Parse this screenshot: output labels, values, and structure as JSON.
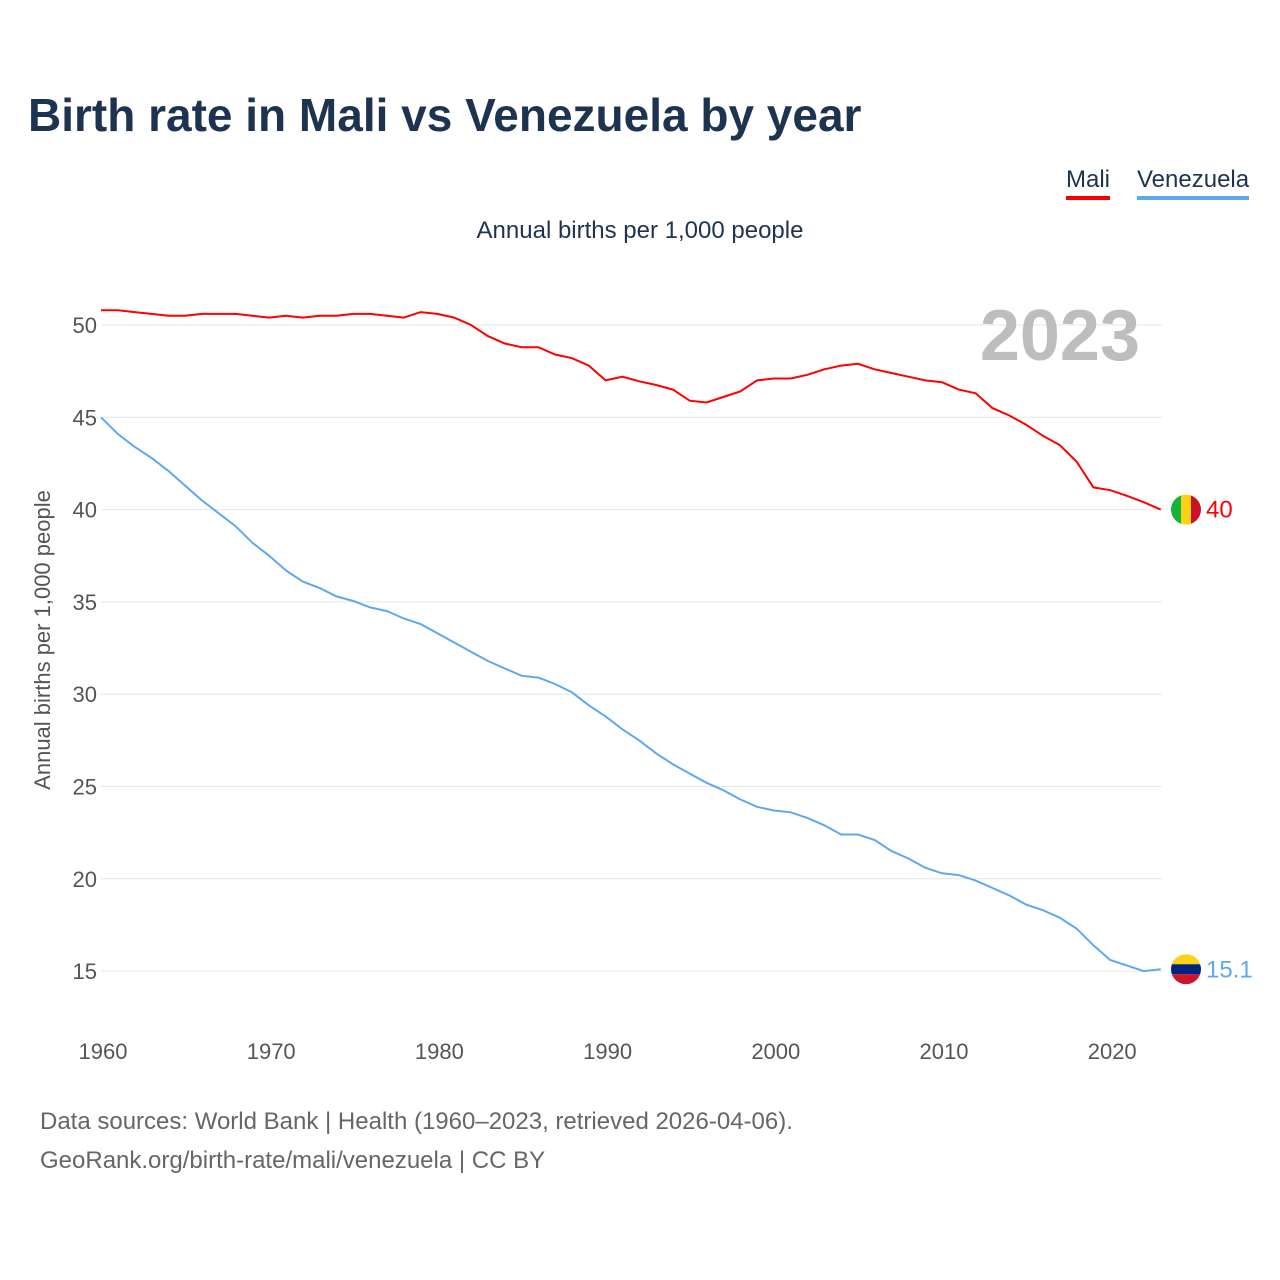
{
  "title": "Birth rate in Mali vs Venezuela by year",
  "legend": [
    {
      "label": "Mali",
      "color": "#ff0000"
    },
    {
      "label": "Venezuela",
      "color": "#5fa8ee"
    }
  ],
  "source_line1": "Data sources: World Bank | Health (1960–2023, retrieved 2026-04-06).",
  "source_line2": "GeoRank.org/birth-rate/mali/venezuela | CC BY",
  "chart_data": {
    "type": "line",
    "title": "Birth rate in Mali vs Venezuela by year",
    "subtitle": "Annual births per 1,000 people",
    "ylabel": "Annual births per 1,000 people",
    "xlabel": "",
    "year_label": "2023",
    "xlim": [
      1960,
      2023
    ],
    "ylim": [
      12.5,
      52.5
    ],
    "xticks": [
      1960,
      1970,
      1980,
      1990,
      2000,
      2010,
      2020
    ],
    "yticks": [
      15,
      20,
      25,
      30,
      35,
      40,
      45,
      50
    ],
    "grid": true,
    "legend_position": "top-right",
    "x": [
      1960,
      1961,
      1962,
      1963,
      1964,
      1965,
      1966,
      1967,
      1968,
      1969,
      1970,
      1971,
      1972,
      1973,
      1974,
      1975,
      1976,
      1977,
      1978,
      1979,
      1980,
      1981,
      1982,
      1983,
      1984,
      1985,
      1986,
      1987,
      1988,
      1989,
      1990,
      1991,
      1992,
      1993,
      1994,
      1995,
      1996,
      1997,
      1998,
      1999,
      2000,
      2001,
      2002,
      2003,
      2004,
      2005,
      2006,
      2007,
      2008,
      2009,
      2010,
      2011,
      2012,
      2013,
      2014,
      2015,
      2016,
      2017,
      2018,
      2019,
      2020,
      2021,
      2022,
      2023
    ],
    "series": [
      {
        "name": "Mali",
        "color": "#ff0000",
        "end_label": "40",
        "values": [
          50.8,
          50.8,
          50.7,
          50.6,
          50.5,
          50.5,
          50.6,
          50.6,
          50.6,
          50.5,
          50.4,
          50.5,
          50.4,
          50.5,
          50.5,
          50.6,
          50.6,
          50.5,
          50.4,
          50.7,
          50.6,
          50.4,
          50.0,
          49.4,
          49.0,
          48.8,
          48.8,
          48.4,
          48.2,
          47.8,
          47.0,
          47.2,
          46.95,
          46.75,
          46.5,
          45.9,
          45.8,
          46.1,
          46.4,
          47.0,
          47.1,
          47.1,
          47.3,
          47.6,
          47.8,
          47.9,
          47.6,
          47.4,
          47.2,
          47.0,
          46.9,
          46.5,
          46.3,
          45.5,
          45.1,
          44.6,
          44.0,
          43.5,
          42.6,
          41.2,
          41.05,
          40.75,
          40.4,
          40.0
        ]
      },
      {
        "name": "Venezuela",
        "color": "#5fa8ee",
        "end_label": "15.1",
        "values": [
          45.0,
          44.1,
          43.4,
          42.8,
          42.1,
          41.3,
          40.5,
          39.8,
          39.1,
          38.2,
          37.5,
          36.7,
          36.1,
          35.75,
          35.3,
          35.05,
          34.7,
          34.5,
          34.1,
          33.8,
          33.3,
          32.8,
          32.3,
          31.8,
          31.4,
          31.0,
          30.9,
          30.55,
          30.1,
          29.4,
          28.8,
          28.1,
          27.5,
          26.8,
          26.2,
          25.7,
          25.2,
          24.8,
          24.3,
          23.9,
          23.7,
          23.6,
          23.3,
          22.9,
          22.4,
          22.4,
          22.1,
          21.5,
          21.1,
          20.6,
          20.3,
          20.2,
          19.9,
          19.5,
          19.1,
          18.6,
          18.3,
          17.9,
          17.3,
          16.4,
          15.6,
          15.3,
          15.0,
          15.1
        ]
      }
    ]
  }
}
